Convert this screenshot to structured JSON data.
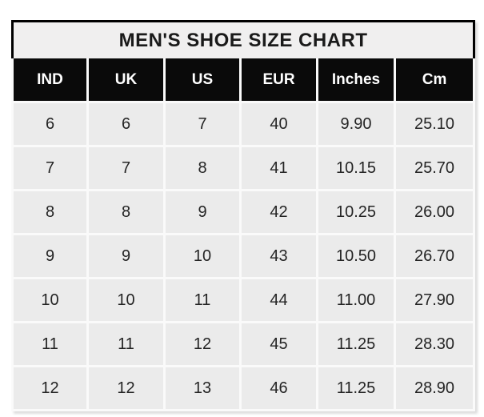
{
  "title": "MEN'S SHOE SIZE CHART",
  "colors": {
    "border": "#000000",
    "header_bg": "#0a0a0a",
    "header_text": "#ffffff",
    "title_bg": "#f0efef",
    "cell_bg": "#ebebeb",
    "grid_line": "#fafafa",
    "cell_text": "#242424"
  },
  "table": {
    "columns": [
      "IND",
      "UK",
      "US",
      "EUR",
      "Inches",
      "Cm"
    ],
    "rows": [
      [
        "6",
        "6",
        "7",
        "40",
        "9.90",
        "25.10"
      ],
      [
        "7",
        "7",
        "8",
        "41",
        "10.15",
        "25.70"
      ],
      [
        "8",
        "8",
        "9",
        "42",
        "10.25",
        "26.00"
      ],
      [
        "9",
        "9",
        "10",
        "43",
        "10.50",
        "26.70"
      ],
      [
        "10",
        "10",
        "11",
        "44",
        "11.00",
        "27.90"
      ],
      [
        "11",
        "11",
        "12",
        "45",
        "11.25",
        "28.30"
      ],
      [
        "12",
        "12",
        "13",
        "46",
        "11.25",
        "28.90"
      ]
    ]
  },
  "chart_data": {
    "type": "table",
    "title": "MEN'S SHOE SIZE CHART",
    "columns": [
      "IND",
      "UK",
      "US",
      "EUR",
      "Inches",
      "Cm"
    ],
    "rows": [
      [
        6,
        6,
        7,
        40,
        9.9,
        25.1
      ],
      [
        7,
        7,
        8,
        41,
        10.15,
        25.7
      ],
      [
        8,
        8,
        9,
        42,
        10.25,
        26.0
      ],
      [
        9,
        9,
        10,
        43,
        10.5,
        26.7
      ],
      [
        10,
        10,
        11,
        44,
        11.0,
        27.9
      ],
      [
        11,
        11,
        12,
        45,
        11.25,
        28.3
      ],
      [
        12,
        12,
        13,
        46,
        11.25,
        28.9
      ]
    ]
  }
}
